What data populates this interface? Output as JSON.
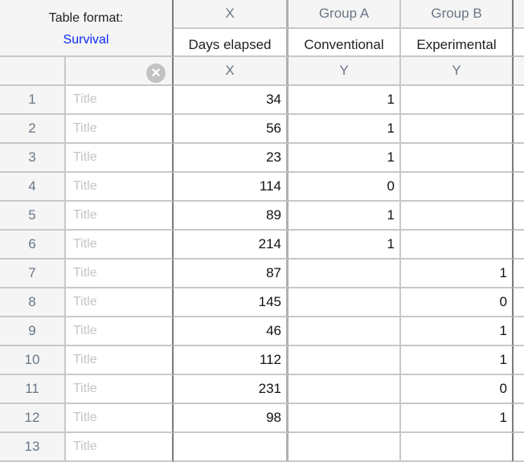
{
  "table_format": {
    "label": "Table format:",
    "value": "Survival"
  },
  "columns": [
    {
      "group": "X",
      "title": "Days elapsed",
      "type": "X"
    },
    {
      "group": "Group A",
      "title": "Conventional",
      "type": "Y"
    },
    {
      "group": "Group B",
      "title": "Experimental",
      "type": "Y"
    }
  ],
  "clear_icon": "clear-x-circle-icon",
  "row_title_placeholder": "Title",
  "rows": [
    {
      "n": "1",
      "x": "34",
      "a": "1",
      "b": ""
    },
    {
      "n": "2",
      "x": "56",
      "a": "1",
      "b": ""
    },
    {
      "n": "3",
      "x": "23",
      "a": "1",
      "b": ""
    },
    {
      "n": "4",
      "x": "114",
      "a": "0",
      "b": ""
    },
    {
      "n": "5",
      "x": "89",
      "a": "1",
      "b": ""
    },
    {
      "n": "6",
      "x": "214",
      "a": "1",
      "b": ""
    },
    {
      "n": "7",
      "x": "87",
      "a": "",
      "b": "1"
    },
    {
      "n": "8",
      "x": "145",
      "a": "",
      "b": "0"
    },
    {
      "n": "9",
      "x": "46",
      "a": "",
      "b": "1"
    },
    {
      "n": "10",
      "x": "112",
      "a": "",
      "b": "1"
    },
    {
      "n": "11",
      "x": "231",
      "a": "",
      "b": "0"
    },
    {
      "n": "12",
      "x": "98",
      "a": "",
      "b": "1"
    },
    {
      "n": "13",
      "x": "",
      "a": "",
      "b": ""
    }
  ]
}
